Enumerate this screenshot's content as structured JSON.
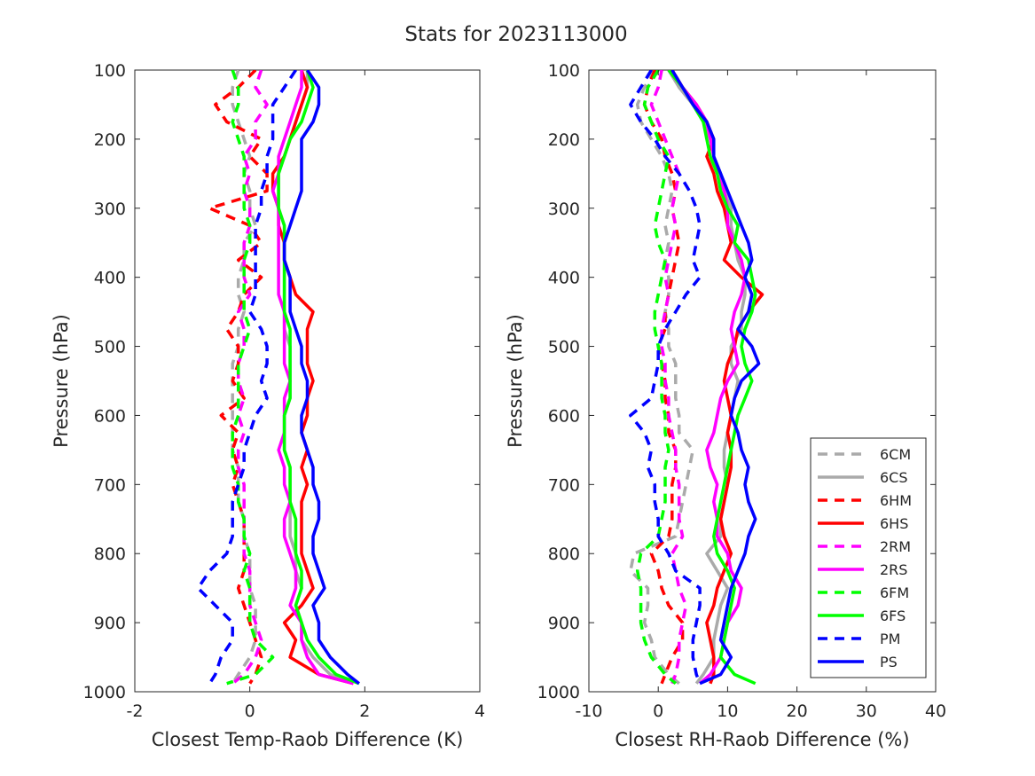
{
  "title": "Stats for 2023113000",
  "colors": {
    "6C": "#aaaaaa",
    "6H": "#ff0000",
    "2R": "#ff00ff",
    "6F": "#00ff00",
    "P": "#0000ff"
  },
  "chart_data": [
    {
      "type": "line",
      "xlabel": "Closest Temp-Raob Difference (K)",
      "ylabel": "Pressure (hPa)",
      "xlim": [
        -2,
        4
      ],
      "ylim": [
        100,
        1000
      ],
      "y_reversed": true,
      "xticks": [
        "-2",
        "0",
        "2",
        "4"
      ],
      "yticks": [
        "100",
        "200",
        "300",
        "400",
        "500",
        "600",
        "700",
        "800",
        "900",
        "1000"
      ],
      "y": [
        100,
        125,
        150,
        175,
        200,
        225,
        250,
        275,
        300,
        325,
        350,
        375,
        400,
        425,
        450,
        475,
        500,
        525,
        550,
        575,
        600,
        625,
        650,
        675,
        700,
        725,
        750,
        775,
        800,
        825,
        850,
        875,
        900,
        925,
        950,
        975,
        988
      ],
      "series": [
        {
          "name": "6CM",
          "color_key": "6C",
          "dashed": true,
          "x": [
            -0.2,
            -0.3,
            -0.3,
            -0.2,
            -0.1,
            0.0,
            -0.1,
            0.0,
            0.0,
            0.1,
            -0.1,
            -0.1,
            -0.2,
            -0.2,
            -0.1,
            -0.2,
            -0.2,
            -0.3,
            -0.3,
            -0.3,
            -0.3,
            -0.3,
            -0.3,
            -0.2,
            -0.2,
            -0.2,
            -0.1,
            -0.1,
            0.0,
            0.0,
            0.0,
            0.1,
            0.1,
            0.1,
            0.0,
            -0.2,
            -0.3
          ]
        },
        {
          "name": "6CS",
          "color_key": "6C",
          "dashed": false,
          "x": [
            1.0,
            1.0,
            0.9,
            0.8,
            0.7,
            0.6,
            0.5,
            0.5,
            0.5,
            0.6,
            0.6,
            0.6,
            0.6,
            0.6,
            0.6,
            0.6,
            0.7,
            0.7,
            0.7,
            0.7,
            0.6,
            0.6,
            0.6,
            0.7,
            0.7,
            0.7,
            0.7,
            0.7,
            0.8,
            0.8,
            0.9,
            0.8,
            0.9,
            0.9,
            1.1,
            1.4,
            1.8
          ]
        },
        {
          "name": "6HM",
          "color_key": "6H",
          "dashed": true,
          "x": [
            0.1,
            -0.2,
            -0.6,
            -0.4,
            0.2,
            0.0,
            0.3,
            0.3,
            -0.7,
            0.0,
            0.2,
            -0.2,
            0.2,
            -0.1,
            -0.2,
            -0.4,
            -0.2,
            -0.2,
            -0.3,
            -0.1,
            -0.5,
            -0.2,
            -0.3,
            -0.2,
            -0.3,
            -0.2,
            -0.1,
            -0.1,
            -0.1,
            -0.1,
            -0.2,
            -0.1,
            0.0,
            0.1,
            0.2,
            0.1,
            0.0
          ]
        },
        {
          "name": "6HS",
          "color_key": "6H",
          "dashed": false,
          "x": [
            0.9,
            1.0,
            0.9,
            0.8,
            0.7,
            0.6,
            0.4,
            0.4,
            0.5,
            0.5,
            0.6,
            0.6,
            0.7,
            0.8,
            1.1,
            1.0,
            1.0,
            1.0,
            1.1,
            1.0,
            1.0,
            0.9,
            1.0,
            0.9,
            1.0,
            0.9,
            0.9,
            0.9,
            0.9,
            1.0,
            1.1,
            0.9,
            0.6,
            0.8,
            0.7,
            1.2,
            1.8
          ]
        },
        {
          "name": "2RM",
          "color_key": "2R",
          "dashed": true,
          "x": [
            0.2,
            0.1,
            0.3,
            0.1,
            0.1,
            -0.1,
            0.0,
            -0.1,
            0.0,
            0.0,
            -0.1,
            -0.1,
            -0.1,
            0.0,
            -0.2,
            -0.1,
            -0.1,
            -0.2,
            -0.2,
            -0.1,
            -0.2,
            -0.1,
            -0.2,
            -0.2,
            -0.1,
            -0.1,
            -0.1,
            -0.1,
            -0.1,
            0.0,
            0.0,
            0.0,
            0.1,
            0.2,
            0.1,
            -0.1,
            -0.3
          ]
        },
        {
          "name": "2RS",
          "color_key": "2R",
          "dashed": false,
          "x": [
            0.9,
            0.9,
            0.8,
            0.7,
            0.6,
            0.5,
            0.5,
            0.4,
            0.5,
            0.5,
            0.5,
            0.5,
            0.5,
            0.5,
            0.6,
            0.6,
            0.6,
            0.6,
            0.7,
            0.6,
            0.6,
            0.6,
            0.5,
            0.6,
            0.6,
            0.7,
            0.6,
            0.6,
            0.7,
            0.8,
            0.8,
            0.7,
            0.9,
            0.9,
            1.0,
            1.2,
            1.8
          ]
        },
        {
          "name": "6FM",
          "color_key": "6F",
          "dashed": true,
          "x": [
            -0.3,
            -0.2,
            -0.2,
            -0.3,
            -0.2,
            -0.1,
            -0.1,
            -0.1,
            -0.1,
            0.0,
            0.0,
            -0.1,
            -0.1,
            -0.1,
            -0.1,
            0.0,
            -0.1,
            -0.2,
            -0.2,
            -0.2,
            -0.2,
            -0.3,
            -0.3,
            -0.3,
            -0.2,
            -0.2,
            -0.1,
            -0.1,
            0.0,
            -0.1,
            0.0,
            0.0,
            0.0,
            0.1,
            0.4,
            0.1,
            -0.4
          ]
        },
        {
          "name": "6FS",
          "color_key": "6F",
          "dashed": false,
          "x": [
            1.0,
            1.1,
            1.0,
            0.9,
            0.7,
            0.6,
            0.5,
            0.5,
            0.5,
            0.6,
            0.6,
            0.6,
            0.6,
            0.6,
            0.6,
            0.7,
            0.7,
            0.7,
            0.7,
            0.7,
            0.6,
            0.6,
            0.6,
            0.7,
            0.7,
            0.7,
            0.8,
            0.8,
            0.8,
            0.9,
            0.9,
            0.8,
            0.9,
            1.0,
            1.2,
            1.5,
            1.9
          ]
        },
        {
          "name": "PM",
          "color_key": "P",
          "dashed": true,
          "x": [
            0.8,
            0.6,
            0.4,
            0.4,
            0.4,
            0.3,
            0.3,
            0.2,
            0.2,
            0.1,
            0.1,
            0.1,
            0.1,
            0.1,
            0.0,
            0.2,
            0.3,
            0.3,
            0.2,
            0.3,
            0.1,
            0.0,
            -0.1,
            -0.1,
            -0.2,
            -0.3,
            -0.3,
            -0.3,
            -0.4,
            -0.7,
            -0.9,
            -0.6,
            -0.3,
            -0.3,
            -0.5,
            -0.6,
            -0.7
          ]
        },
        {
          "name": "PS",
          "color_key": "P",
          "dashed": false,
          "x": [
            1.0,
            1.2,
            1.2,
            1.1,
            0.9,
            0.9,
            0.9,
            0.9,
            0.8,
            0.7,
            0.6,
            0.6,
            0.7,
            0.7,
            0.7,
            0.8,
            0.9,
            0.9,
            1.0,
            1.0,
            0.9,
            0.9,
            1.0,
            1.1,
            1.1,
            1.2,
            1.2,
            1.1,
            1.1,
            1.2,
            1.3,
            1.1,
            1.2,
            1.2,
            1.4,
            1.7,
            1.9
          ]
        }
      ]
    },
    {
      "type": "line",
      "xlabel": "Closest RH-Raob Difference (%)",
      "ylabel": "Pressure (hPa)",
      "xlim": [
        -10,
        40
      ],
      "ylim": [
        100,
        1000
      ],
      "y_reversed": true,
      "xticks": [
        "-10",
        "0",
        "10",
        "20",
        "30",
        "40"
      ],
      "yticks": [
        "100",
        "200",
        "300",
        "400",
        "500",
        "600",
        "700",
        "800",
        "900",
        "1000"
      ],
      "legend_location": "bottom-right",
      "y": [
        100,
        125,
        150,
        175,
        200,
        225,
        250,
        275,
        300,
        325,
        350,
        375,
        400,
        425,
        450,
        475,
        500,
        525,
        550,
        575,
        600,
        625,
        650,
        675,
        700,
        725,
        750,
        775,
        800,
        825,
        850,
        875,
        900,
        925,
        950,
        975,
        988
      ],
      "series": [
        {
          "name": "6CM",
          "color_key": "6C",
          "dashed": true,
          "x": [
            -0.5,
            -2.0,
            -3.0,
            -2.5,
            -1.0,
            0.5,
            1.5,
            2.0,
            1.5,
            1.0,
            1.5,
            1.0,
            1.5,
            1.5,
            1.0,
            1.5,
            1.5,
            2.5,
            2.5,
            2.5,
            3.0,
            3.0,
            5.0,
            4.5,
            4.0,
            3.5,
            3.0,
            2.5,
            -3.5,
            -4.0,
            -1.5,
            -1.5,
            -2.0,
            -1.0,
            -0.5,
            1.5,
            3.0
          ]
        },
        {
          "name": "6CS",
          "color_key": "6C",
          "dashed": false,
          "x": [
            1.5,
            3.0,
            5.0,
            6.5,
            7.5,
            8.0,
            9.0,
            9.5,
            10.5,
            10.5,
            11.0,
            11.5,
            12.5,
            12.5,
            12.0,
            12.0,
            10.5,
            10.5,
            11.5,
            11.0,
            10.5,
            10.0,
            9.5,
            9.5,
            10.0,
            9.5,
            9.0,
            9.0,
            7.0,
            8.5,
            10.0,
            9.0,
            8.5,
            8.0,
            8.0,
            6.5,
            5.5
          ]
        },
        {
          "name": "6HM",
          "color_key": "6H",
          "dashed": true,
          "x": [
            -0.5,
            -1.5,
            -2.0,
            -1.0,
            0.5,
            1.0,
            2.0,
            2.5,
            2.0,
            2.5,
            3.0,
            2.5,
            2.0,
            1.5,
            1.0,
            1.0,
            0.0,
            0.5,
            1.0,
            1.0,
            1.5,
            1.5,
            2.5,
            2.5,
            2.0,
            2.0,
            2.0,
            1.5,
            -1.0,
            0.0,
            0.5,
            1.5,
            3.5,
            3.5,
            2.0,
            1.0,
            0.5
          ]
        },
        {
          "name": "6HS",
          "color_key": "6H",
          "dashed": false,
          "x": [
            2.0,
            3.5,
            5.5,
            7.0,
            8.0,
            7.0,
            8.0,
            8.5,
            9.5,
            10.0,
            10.5,
            9.5,
            12.0,
            15.0,
            13.0,
            11.5,
            11.0,
            10.0,
            9.5,
            10.0,
            10.5,
            10.0,
            10.5,
            10.5,
            10.0,
            9.5,
            9.0,
            9.5,
            10.5,
            9.5,
            8.5,
            8.0,
            7.0,
            7.5,
            8.0,
            8.0,
            7.5
          ]
        },
        {
          "name": "2RM",
          "color_key": "2R",
          "dashed": true,
          "x": [
            0.5,
            0.0,
            -1.0,
            0.0,
            1.0,
            2.0,
            3.0,
            2.5,
            2.0,
            2.5,
            2.0,
            1.5,
            1.0,
            1.5,
            1.0,
            0.5,
            0.5,
            1.0,
            1.0,
            1.5,
            1.5,
            2.0,
            2.5,
            2.5,
            3.0,
            3.0,
            3.0,
            3.5,
            2.0,
            2.5,
            3.0,
            4.0,
            3.5,
            3.0,
            3.0,
            2.5,
            2.0
          ]
        },
        {
          "name": "2RS",
          "color_key": "2R",
          "dashed": false,
          "x": [
            1.5,
            3.5,
            5.5,
            7.0,
            7.5,
            8.0,
            8.5,
            9.5,
            10.0,
            10.0,
            11.0,
            12.0,
            12.5,
            12.0,
            11.0,
            10.5,
            11.0,
            11.5,
            10.0,
            9.0,
            8.5,
            8.0,
            7.0,
            7.5,
            8.5,
            8.0,
            8.5,
            8.5,
            10.0,
            10.5,
            12.0,
            11.5,
            10.0,
            9.5,
            9.0,
            7.5,
            6.0
          ]
        },
        {
          "name": "6FM",
          "color_key": "6F",
          "dashed": true,
          "x": [
            0.0,
            -1.5,
            -2.0,
            -1.0,
            0.0,
            1.5,
            1.0,
            0.5,
            0.0,
            -0.5,
            0.0,
            1.0,
            0.5,
            0.0,
            -0.5,
            -0.5,
            0.0,
            0.5,
            0.5,
            0.5,
            1.0,
            1.0,
            1.5,
            1.0,
            1.0,
            1.0,
            0.5,
            0.0,
            -2.5,
            -3.0,
            -2.5,
            -2.5,
            -2.5,
            -2.0,
            -1.0,
            1.0,
            2.5
          ]
        },
        {
          "name": "6FS",
          "color_key": "6F",
          "dashed": false,
          "x": [
            1.5,
            3.5,
            5.0,
            6.5,
            7.0,
            7.5,
            8.5,
            9.0,
            10.0,
            11.5,
            11.0,
            13.0,
            13.5,
            14.0,
            13.5,
            12.5,
            12.0,
            12.5,
            13.5,
            12.5,
            11.5,
            11.0,
            10.5,
            10.0,
            9.5,
            9.0,
            8.5,
            8.0,
            8.5,
            10.0,
            11.0,
            10.5,
            10.0,
            9.5,
            9.0,
            11.0,
            14.0
          ]
        },
        {
          "name": "PM",
          "color_key": "P",
          "dashed": true,
          "x": [
            -1.0,
            -2.5,
            -4.0,
            -2.5,
            -0.5,
            1.0,
            3.0,
            4.5,
            5.5,
            6.0,
            5.5,
            5.0,
            6.0,
            4.0,
            2.5,
            1.0,
            0.0,
            0.0,
            -0.5,
            -1.0,
            -4.0,
            -2.0,
            -1.0,
            -1.5,
            -0.5,
            -0.5,
            0.0,
            0.0,
            1.5,
            2.5,
            6.0,
            6.0,
            5.5,
            5.0,
            5.0,
            5.5,
            6.0
          ]
        },
        {
          "name": "PS",
          "color_key": "P",
          "dashed": false,
          "x": [
            2.0,
            3.5,
            5.0,
            7.0,
            8.0,
            8.0,
            9.0,
            10.0,
            11.0,
            12.0,
            13.0,
            13.5,
            12.5,
            13.5,
            13.0,
            11.5,
            13.5,
            14.5,
            12.0,
            11.0,
            10.5,
            11.5,
            12.0,
            13.0,
            12.5,
            13.0,
            14.0,
            13.0,
            12.5,
            11.5,
            10.5,
            10.0,
            9.5,
            9.0,
            10.5,
            9.0,
            6.0
          ]
        }
      ]
    }
  ]
}
